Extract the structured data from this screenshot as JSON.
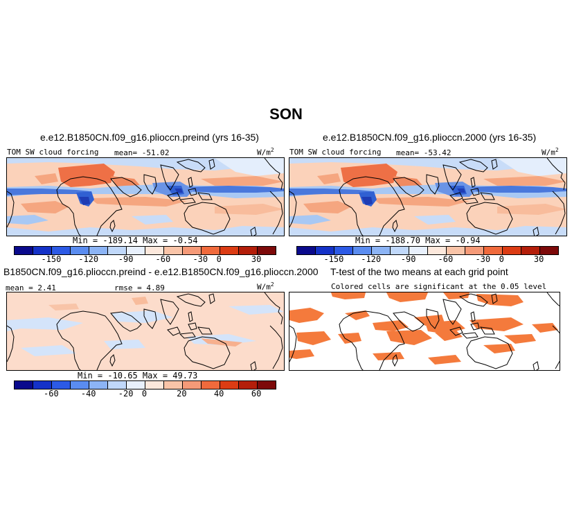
{
  "title": "SON",
  "panels": {
    "top_left": {
      "title": "e.e12.B1850CN.f09_g16.plioccn.preind (yrs 16-35)",
      "label_left": "TOM SW cloud forcing",
      "label_mean": "mean= -51.02",
      "units": "W/m",
      "units_sup": "2",
      "minmax": "Min = -189.14 Max =  -0.54"
    },
    "top_right": {
      "title": "e.e12.B1850CN.f09_g16.plioccn.2000 (yrs 16-35)",
      "label_left": "TOM SW cloud forcing",
      "label_mean": "mean= -53.42",
      "units": "W/m",
      "units_sup": "2",
      "minmax": "Min = -188.70 Max =  -0.94"
    },
    "bottom_left": {
      "title": "B1850CN.f09_g16.plioccn.preind - e.e12.B1850CN.f09_g16.plioccn.2000",
      "label_left": "mean =  2.41",
      "label_rmse": "rmse =  4.89",
      "units": "W/m",
      "units_sup": "2",
      "minmax": "Min = -10.65 Max =  49.73"
    },
    "bottom_right": {
      "title": "T-test of the two means at each grid point",
      "subtitle": "Colored cells are significant at the 0.05 level"
    }
  },
  "colorbar_abs": {
    "colors": [
      "#0a0a8c",
      "#1432c8",
      "#2c5ae6",
      "#5a8cf0",
      "#8cb4f5",
      "#c0d8fa",
      "#e8f0fc",
      "#fce8dc",
      "#f9c4a8",
      "#f59a78",
      "#f06a3c",
      "#dc3c14",
      "#b41e0a",
      "#7d0a0a"
    ],
    "tick_labels": [
      "-150",
      "-120",
      "-90",
      "-60",
      "-30",
      "0",
      "30"
    ]
  },
  "colorbar_diff": {
    "colors": [
      "#0a0a8c",
      "#1432c8",
      "#2c5ae6",
      "#5a8cf0",
      "#8cb4f5",
      "#c0d8fa",
      "#e8f0fc",
      "#fce8dc",
      "#f9c4a8",
      "#f59a78",
      "#f06a3c",
      "#dc3c14",
      "#b41e0a",
      "#7d0a0a"
    ],
    "tick_labels": [
      "-60",
      "-40",
      "-20",
      "0",
      "20",
      "40",
      "60"
    ]
  },
  "map_colors": {
    "ocean_base": "#fbd2ba",
    "africa_sahara": "#ee7046",
    "sc_band": "#f5a680",
    "itcz_blue": "#4a78dc",
    "light_blue": "#a8c8f4",
    "diff_base": "#fcdccb",
    "diff_blue": "#d4e4fa",
    "ttest_fill": "#f47a3c"
  }
}
